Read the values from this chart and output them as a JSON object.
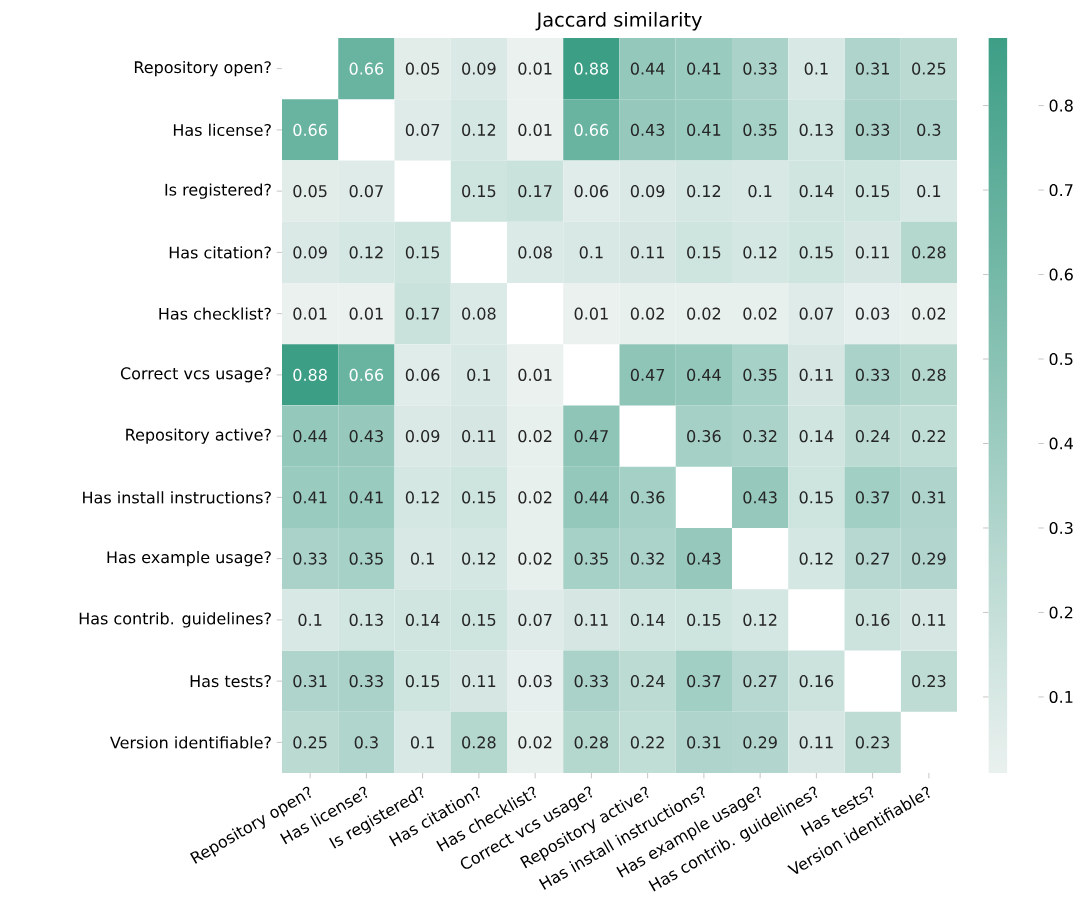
{
  "chart_data": {
    "type": "heatmap",
    "title": "Jaccard similarity",
    "categories": [
      "Repository open?",
      "Has license?",
      "Is registered?",
      "Has citation?",
      "Has checklist?",
      "Correct vcs usage?",
      "Repository active?",
      "Has install instructions?",
      "Has example usage?",
      "Has contrib. guidelines?",
      "Has tests?",
      "Version identifiable?"
    ],
    "y_categories": [
      "Repository open?",
      "Has license?",
      "Is registered?",
      "Has citation?",
      "Has checklist?",
      "Correct vcs usage?",
      "Repository active?",
      "Has install instructions?",
      "Has example usage?",
      "Has contrib. guidelines?",
      "Has tests?",
      "Version identifiable?"
    ],
    "cells": [
      [
        null,
        0.66,
        0.05,
        0.09,
        0.01,
        0.88,
        0.44,
        0.41,
        0.33,
        0.1,
        0.31,
        0.25
      ],
      [
        0.66,
        null,
        0.07,
        0.12,
        0.01,
        0.66,
        0.43,
        0.41,
        0.35,
        0.13,
        0.33,
        0.3
      ],
      [
        0.05,
        0.07,
        null,
        0.15,
        0.17,
        0.06,
        0.09,
        0.12,
        0.1,
        0.14,
        0.15,
        0.1
      ],
      [
        0.09,
        0.12,
        0.15,
        null,
        0.08,
        0.1,
        0.11,
        0.15,
        0.12,
        0.15,
        0.11,
        0.28
      ],
      [
        0.01,
        0.01,
        0.17,
        0.08,
        null,
        0.01,
        0.02,
        0.02,
        0.02,
        0.07,
        0.03,
        0.02
      ],
      [
        0.88,
        0.66,
        0.06,
        0.1,
        0.01,
        null,
        0.47,
        0.44,
        0.35,
        0.11,
        0.33,
        0.28
      ],
      [
        0.44,
        0.43,
        0.09,
        0.11,
        0.02,
        0.47,
        null,
        0.36,
        0.32,
        0.14,
        0.24,
        0.22
      ],
      [
        0.41,
        0.41,
        0.12,
        0.15,
        0.02,
        0.44,
        0.36,
        null,
        0.43,
        0.15,
        0.37,
        0.31
      ],
      [
        0.33,
        0.35,
        0.1,
        0.12,
        0.02,
        0.35,
        0.32,
        0.43,
        null,
        0.12,
        0.27,
        0.29
      ],
      [
        0.1,
        0.13,
        0.14,
        0.15,
        0.07,
        0.11,
        0.14,
        0.15,
        0.12,
        null,
        0.16,
        0.11
      ],
      [
        0.31,
        0.33,
        0.15,
        0.11,
        0.03,
        0.33,
        0.24,
        0.37,
        0.27,
        0.16,
        null,
        0.23
      ],
      [
        0.25,
        0.3,
        0.1,
        0.28,
        0.02,
        0.28,
        0.22,
        0.31,
        0.29,
        0.11,
        0.23,
        null
      ]
    ],
    "data_labels": true,
    "clim": [
      0.01,
      0.88
    ],
    "cticks": [
      0.1,
      0.2,
      0.3,
      0.4,
      0.5,
      0.6,
      0.7,
      0.8
    ]
  }
}
